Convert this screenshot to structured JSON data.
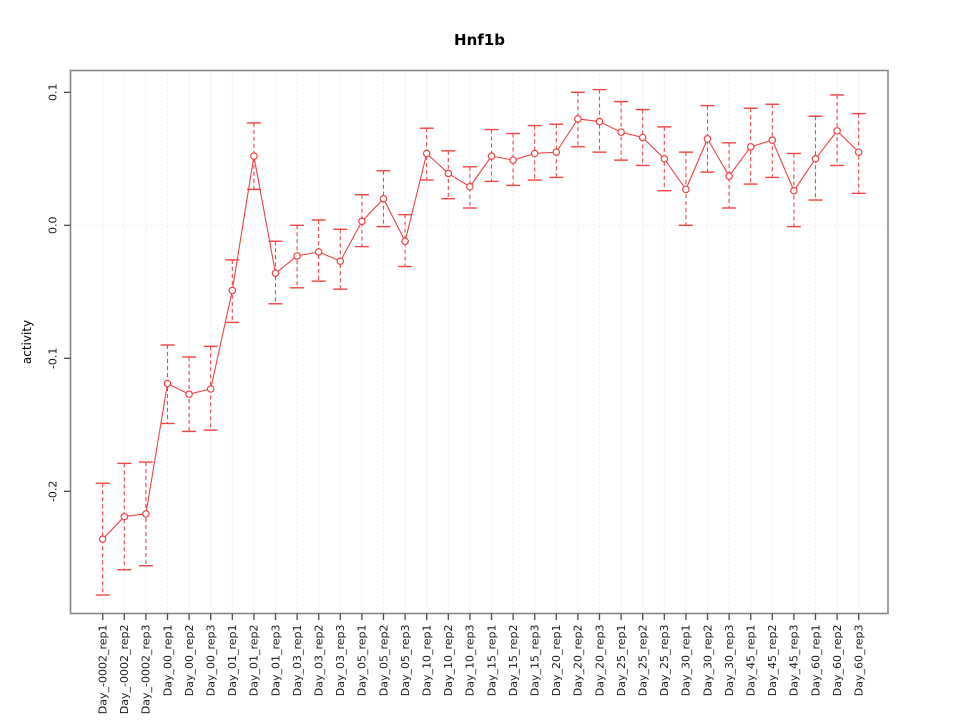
{
  "page": {
    "background": "#ffffff"
  },
  "chart_data": {
    "type": "line",
    "title": "Hnf1b",
    "ylabel": "activity",
    "xlabel": "",
    "legend": "none",
    "marker": "open-circle",
    "error_bar_style": "dashed-vertical-with-solid-caps",
    "grid": {
      "vertical": "dotted at every category",
      "horizontal": "dotted at 0 only"
    },
    "colors": {
      "series": "#f04343",
      "grid": "#dcdcdc",
      "frame": "#878787",
      "tick": "#4a4a4a",
      "text": "#1a1a1a"
    },
    "yticks": [
      "0.1",
      "0.0",
      "-0.1",
      "-0.2"
    ],
    "ytick_values": [
      0.1,
      0.0,
      -0.1,
      -0.2
    ],
    "ylim": [
      -0.291,
      0.116
    ],
    "categories": [
      "Day_-0002_rep1",
      "Day_-0002_rep2",
      "Day_-0002_rep3",
      "Day_00_rep1",
      "Day_00_rep2",
      "Day_00_rep3",
      "Day_01_rep1",
      "Day_01_rep2",
      "Day_01_rep3",
      "Day_03_rep1",
      "Day_03_rep2",
      "Day_03_rep3",
      "Day_05_rep1",
      "Day_05_rep2",
      "Day_05_rep3",
      "Day_10_rep1",
      "Day_10_rep2",
      "Day_10_rep3",
      "Day_15_rep1",
      "Day_15_rep2",
      "Day_15_rep3",
      "Day_20_rep1",
      "Day_20_rep2",
      "Day_20_rep3",
      "Day_25_rep1",
      "Day_25_rep2",
      "Day_25_rep3",
      "Day_30_rep1",
      "Day_30_rep2",
      "Day_30_rep3",
      "Day_45_rep1",
      "Day_45_rep2",
      "Day_45_rep3",
      "Day_60_rep1",
      "Day_60_rep2",
      "Day_60_rep3"
    ],
    "series": [
      {
        "name": "activity",
        "values": [
          -0.236,
          -0.219,
          -0.217,
          -0.119,
          -0.127,
          -0.123,
          -0.049,
          0.052,
          -0.036,
          -0.023,
          -0.02,
          -0.027,
          0.003,
          0.02,
          -0.012,
          0.054,
          0.039,
          0.029,
          0.052,
          0.049,
          0.054,
          0.055,
          0.08,
          0.078,
          0.07,
          0.066,
          0.05,
          0.027,
          0.065,
          0.037,
          0.059,
          0.064,
          0.026,
          0.05,
          0.071,
          0.055
        ],
        "ci_upper": [
          -0.194,
          -0.179,
          -0.178,
          -0.09,
          -0.099,
          -0.091,
          -0.026,
          0.077,
          -0.012,
          0.0,
          0.004,
          -0.003,
          0.023,
          0.041,
          0.008,
          0.073,
          0.056,
          0.044,
          0.072,
          0.069,
          0.075,
          0.076,
          0.1,
          0.102,
          0.093,
          0.087,
          0.074,
          0.055,
          0.09,
          0.062,
          0.088,
          0.091,
          0.054,
          0.082,
          0.098,
          0.084
        ],
        "ci_lower": [
          -0.278,
          -0.259,
          -0.256,
          -0.149,
          -0.155,
          -0.154,
          -0.073,
          0.027,
          -0.059,
          -0.047,
          -0.042,
          -0.048,
          -0.016,
          -0.001,
          -0.031,
          0.034,
          0.02,
          0.013,
          0.033,
          0.03,
          0.034,
          0.036,
          0.059,
          0.055,
          0.049,
          0.045,
          0.026,
          0.0,
          0.04,
          0.013,
          0.031,
          0.036,
          -0.001,
          0.019,
          0.045,
          0.024
        ]
      }
    ]
  }
}
